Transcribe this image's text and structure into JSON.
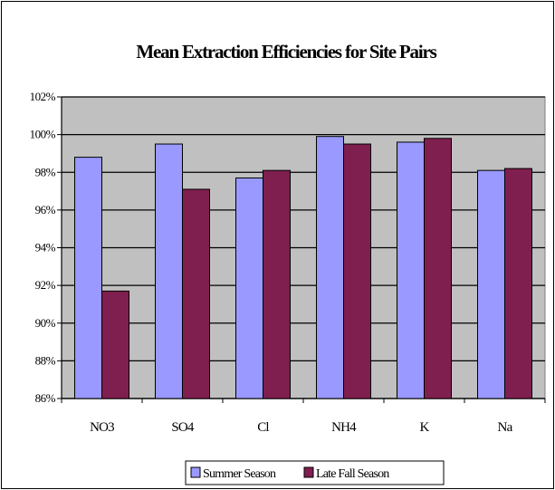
{
  "chart_data": {
    "type": "bar",
    "title": "Mean Extraction Efficiencies for Site Pairs",
    "xlabel": "",
    "ylabel": "",
    "categories": [
      "NO3",
      "SO4",
      "Cl",
      "NH4",
      "K",
      "Na"
    ],
    "series": [
      {
        "name": "Summer Season",
        "values": [
          98.8,
          99.5,
          97.7,
          99.9,
          99.6,
          98.1
        ]
      },
      {
        "name": "Late Fall Season",
        "values": [
          91.7,
          97.1,
          98.1,
          99.5,
          99.8,
          98.2
        ]
      }
    ],
    "ylim": [
      86,
      102
    ],
    "ytick_step": 2,
    "ytick_suffix": "%",
    "grid": true,
    "legend_position": "bottom",
    "colors": {
      "series": [
        "#9999ff",
        "#7f1f4f"
      ],
      "plot_background": "#c0c0c0"
    }
  }
}
